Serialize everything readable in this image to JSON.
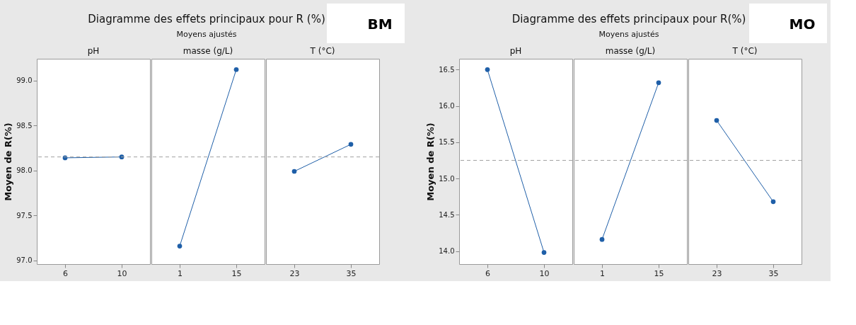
{
  "chart_data": [
    {
      "type": "other",
      "title": "Diagramme des effets principaux pour R (%)",
      "subtitle": "Moyens ajustés",
      "annotations": [
        "BM"
      ]
    },
    {
      "type": "line",
      "title": "pH",
      "ylabel": "Moyen de R(%)",
      "categories": [
        "6",
        "10"
      ],
      "series": [
        {
          "color": "#1f5fa8",
          "values": [
            98.14,
            98.15
          ]
        }
      ],
      "ylim": [
        96.96,
        99.24
      ],
      "yticks": [
        {
          "value": 97,
          "label": "97.0"
        },
        {
          "value": 97.5,
          "label": "97.5"
        },
        {
          "value": 98,
          "label": "98.0"
        },
        {
          "value": 98.5,
          "label": "98.5"
        },
        {
          "value": 99,
          "label": "99.0"
        }
      ],
      "ref_lines": [
        {
          "axis": "y",
          "value": 98.15,
          "color": "#a0a0a0",
          "line_style": "dashed"
        }
      ],
      "marker": "circle",
      "grid": false
    },
    {
      "type": "line",
      "title": "masse (g/L)",
      "categories": [
        "1",
        "15"
      ],
      "series": [
        {
          "color": "#1f5fa8",
          "values": [
            97.16,
            99.12
          ]
        }
      ],
      "ylim": [
        96.96,
        99.24
      ],
      "tick_labels": "x",
      "ref_lines": [
        {
          "axis": "y",
          "value": 98.15,
          "color": "#a0a0a0",
          "line_style": "dashed"
        }
      ],
      "marker": "circle",
      "grid": false
    },
    {
      "type": "line",
      "title": "T (°C)",
      "categories": [
        "23",
        "35"
      ],
      "series": [
        {
          "color": "#1f5fa8",
          "values": [
            97.99,
            98.29
          ]
        }
      ],
      "ylim": [
        96.96,
        99.24
      ],
      "tick_labels": "x",
      "ref_lines": [
        {
          "axis": "y",
          "value": 98.15,
          "color": "#a0a0a0",
          "line_style": "dashed"
        }
      ],
      "marker": "circle",
      "grid": false
    },
    {
      "type": "other",
      "title": "Diagramme des effets principaux pour R(%)",
      "subtitle": "Moyens ajustés",
      "annotations": [
        "MO"
      ]
    },
    {
      "type": "line",
      "title": "pH",
      "ylabel": "Moyen de R(%)",
      "categories": [
        "6",
        "10"
      ],
      "series": [
        {
          "color": "#1f5fa8",
          "values": [
            16.5,
            13.98
          ]
        }
      ],
      "ylim": [
        13.82,
        16.65
      ],
      "yticks": [
        {
          "value": 14,
          "label": "14.0"
        },
        14.5,
        {
          "value": 15,
          "label": "15.0"
        },
        15.5,
        {
          "value": 16,
          "label": "16.0"
        },
        16.5
      ],
      "ref_lines": [
        {
          "axis": "y",
          "value": 15.25,
          "color": "#a0a0a0",
          "line_style": "dashed"
        }
      ],
      "marker": "circle",
      "grid": false
    },
    {
      "type": "line",
      "title": "masse (g/L)",
      "categories": [
        "1",
        "15"
      ],
      "series": [
        {
          "color": "#1f5fa8",
          "values": [
            14.16,
            16.32
          ]
        }
      ],
      "ylim": [
        13.82,
        16.65
      ],
      "tick_labels": "x",
      "ref_lines": [
        {
          "axis": "y",
          "value": 15.25,
          "color": "#a0a0a0",
          "line_style": "dashed"
        }
      ],
      "marker": "circle",
      "grid": false
    },
    {
      "type": "line",
      "title": "T (°C)",
      "categories": [
        "23",
        "35"
      ],
      "series": [
        {
          "color": "#1f5fa8",
          "values": [
            15.8,
            14.68
          ]
        }
      ],
      "ylim": [
        13.82,
        16.65
      ],
      "tick_labels": "x",
      "ref_lines": [
        {
          "axis": "y",
          "value": 15.25,
          "color": "#a0a0a0",
          "line_style": "dashed"
        }
      ],
      "marker": "circle",
      "grid": false
    }
  ]
}
